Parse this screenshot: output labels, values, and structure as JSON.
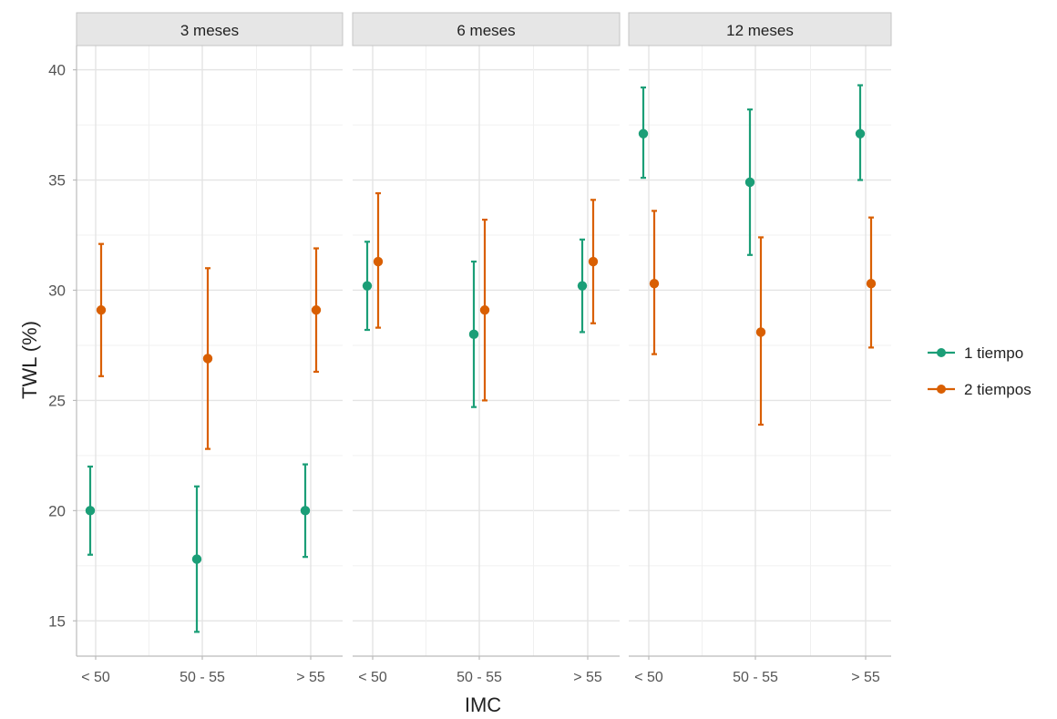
{
  "chart_data": {
    "type": "errorbar",
    "facet_variable": "time",
    "facets": [
      "3 meses",
      "6 meses",
      "12 meses"
    ],
    "categories": [
      "< 50",
      "50 - 55",
      "> 55"
    ],
    "xlabel": "IMC",
    "ylabel": "TWL (%)",
    "ylim": [
      13.4,
      41.1
    ],
    "yticks": [
      15,
      20,
      25,
      30,
      35,
      40
    ],
    "grid": true,
    "legend_position": "right",
    "series": [
      {
        "name": "1 tiempo",
        "color": "#1b9e77",
        "panels": [
          [
            {
              "category": "< 50",
              "mean": 20.0,
              "lower": 18.0,
              "upper": 22.0
            },
            {
              "category": "50 - 55",
              "mean": 17.8,
              "lower": 14.5,
              "upper": 21.1
            },
            {
              "category": "> 55",
              "mean": 20.0,
              "lower": 17.9,
              "upper": 22.1
            }
          ],
          [
            {
              "category": "< 50",
              "mean": 30.2,
              "lower": 28.2,
              "upper": 32.2
            },
            {
              "category": "50 - 55",
              "mean": 28.0,
              "lower": 24.7,
              "upper": 31.3
            },
            {
              "category": "> 55",
              "mean": 30.2,
              "lower": 28.1,
              "upper": 32.3
            }
          ],
          [
            {
              "category": "< 50",
              "mean": 37.1,
              "lower": 35.1,
              "upper": 39.2
            },
            {
              "category": "50 - 55",
              "mean": 34.9,
              "lower": 31.6,
              "upper": 38.2
            },
            {
              "category": "> 55",
              "mean": 37.1,
              "lower": 35.0,
              "upper": 39.3
            }
          ]
        ]
      },
      {
        "name": "2 tiempos",
        "color": "#d95f02",
        "panels": [
          [
            {
              "category": "< 50",
              "mean": 29.1,
              "lower": 26.1,
              "upper": 32.1
            },
            {
              "category": "50 - 55",
              "mean": 26.9,
              "lower": 22.8,
              "upper": 31.0
            },
            {
              "category": "> 55",
              "mean": 29.1,
              "lower": 26.3,
              "upper": 31.9
            }
          ],
          [
            {
              "category": "< 50",
              "mean": 31.3,
              "lower": 28.3,
              "upper": 34.4
            },
            {
              "category": "50 - 55",
              "mean": 29.1,
              "lower": 25.0,
              "upper": 33.2
            },
            {
              "category": "> 55",
              "mean": 31.3,
              "lower": 28.5,
              "upper": 34.1
            }
          ],
          [
            {
              "category": "< 50",
              "mean": 30.3,
              "lower": 27.1,
              "upper": 33.6
            },
            {
              "category": "50 - 55",
              "mean": 28.1,
              "lower": 23.9,
              "upper": 32.4
            },
            {
              "category": "> 55",
              "mean": 30.3,
              "lower": 27.4,
              "upper": 33.3
            }
          ]
        ]
      }
    ]
  }
}
